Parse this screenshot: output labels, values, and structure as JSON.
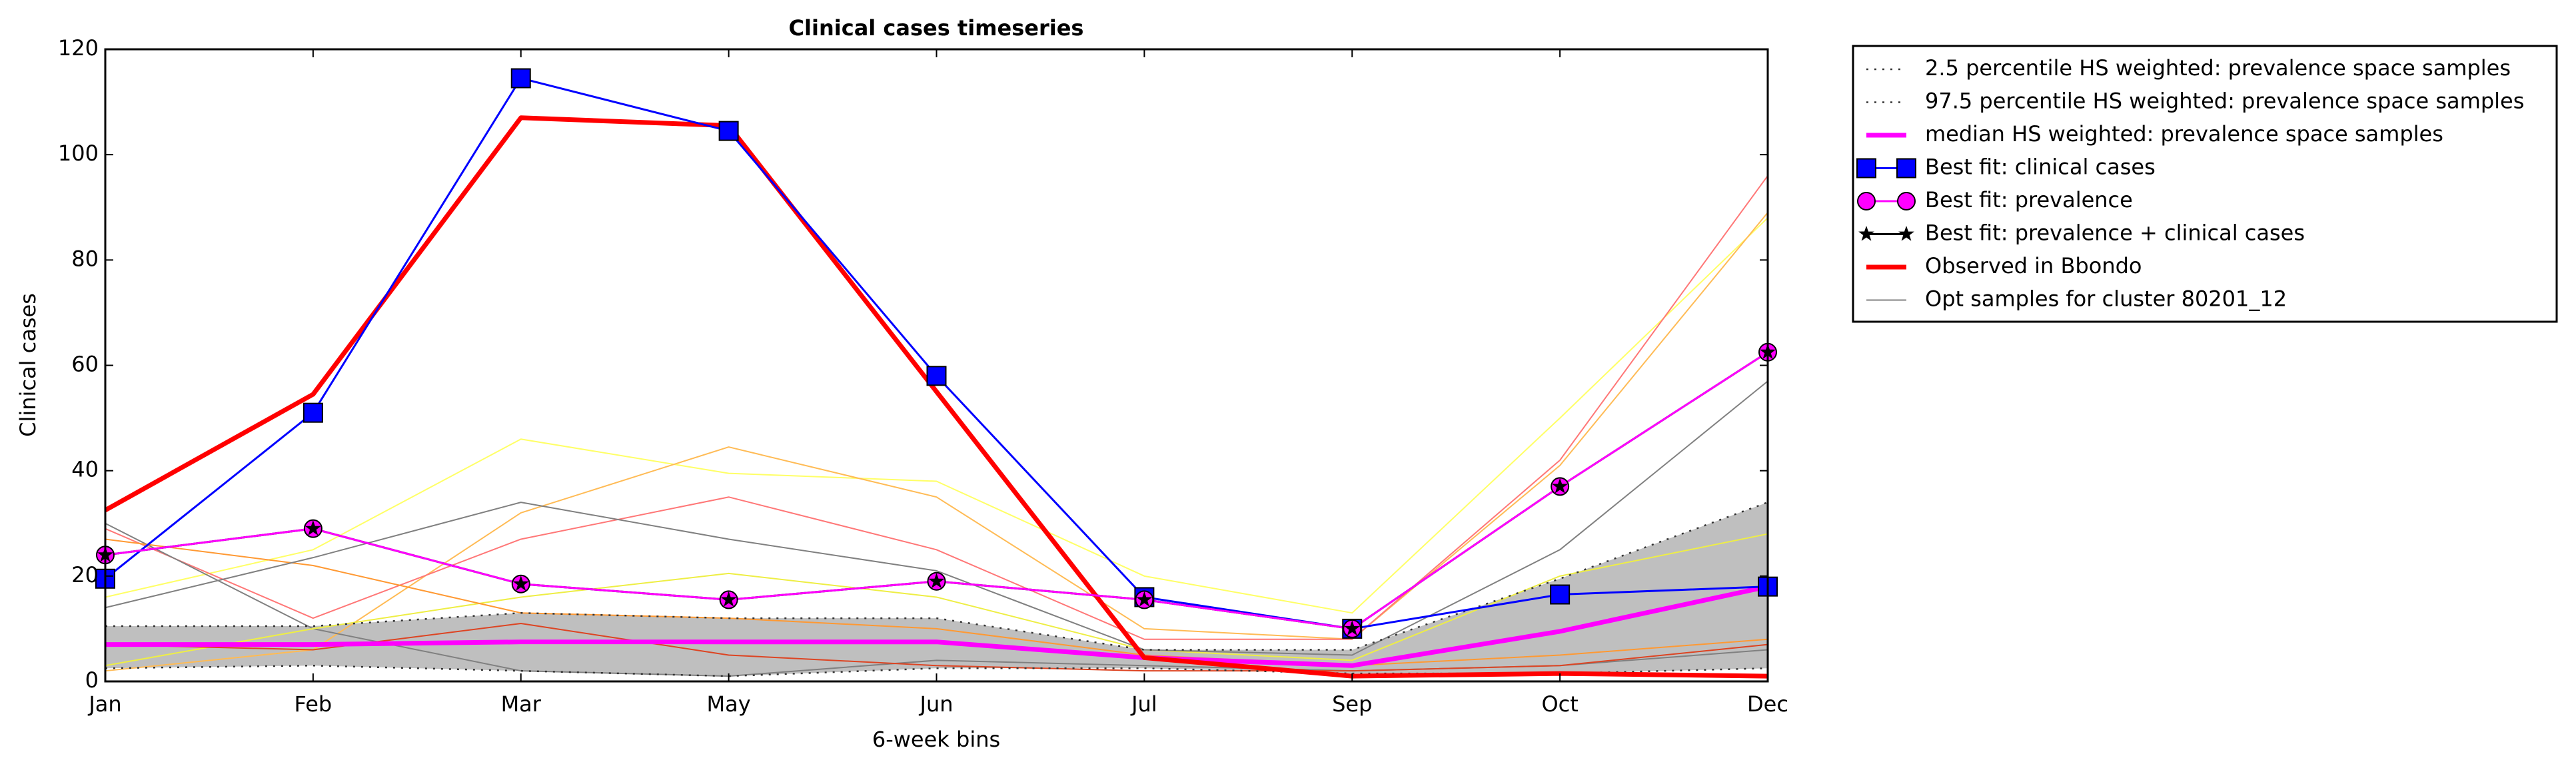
{
  "chart_data": {
    "type": "line",
    "title": "Clinical cases timeseries",
    "x_label": "6-week bins",
    "y_label": "Clinical cases",
    "categories": [
      "Jan",
      "Feb",
      "Mar",
      "May",
      "Jun",
      "Jul",
      "Sep",
      "Oct",
      "Dec"
    ],
    "ylim": [
      0,
      120
    ],
    "yticks": [
      0,
      20,
      40,
      60,
      80,
      100,
      120
    ],
    "legend": "outside-upper-right",
    "band_fill": "#bfbfbf",
    "series": [
      {
        "name": "2.5 percentile HS weighted: prevalence space samples",
        "color": "#333333",
        "style": "dotted",
        "values": [
          2.5,
          3,
          2,
          1,
          2.5,
          2.5,
          1.5,
          1.5,
          2.5
        ]
      },
      {
        "name": "97.5 percentile HS weighted: prevalence space samples",
        "color": "#333333",
        "style": "dotted",
        "values": [
          10.5,
          10.5,
          13,
          12,
          12,
          6,
          6,
          19.5,
          34
        ]
      },
      {
        "name": "median HS weighted: prevalence space samples",
        "color": "#ff00ff",
        "style": "thick",
        "values": [
          7,
          7,
          7.5,
          7.5,
          7.5,
          4.5,
          3,
          9.5,
          18
        ]
      },
      {
        "name": "Best fit: clinical cases",
        "color": "#0000ff",
        "marker": "square",
        "values": [
          19.5,
          51,
          114.5,
          104.5,
          58,
          16,
          10,
          16.5,
          18
        ]
      },
      {
        "name": "Best fit: prevalence",
        "color": "#ff00ff",
        "marker": "circle",
        "values": [
          24,
          29,
          18.5,
          15.5,
          19,
          15.5,
          10,
          37,
          62.5
        ]
      },
      {
        "name": "Best fit: prevalence + clinical cases",
        "color": "#000000",
        "marker": "star",
        "values": [
          24,
          29,
          18.5,
          15.5,
          19,
          15.5,
          10,
          37,
          62.5
        ]
      },
      {
        "name": "Observed in Bbondo",
        "color": "#ff0000",
        "style": "thick",
        "values": [
          32.5,
          54.5,
          107,
          105.5,
          55,
          4.5,
          1,
          1.5,
          1
        ]
      },
      {
        "name": "Opt samples for cluster 80201_12",
        "color": "#808080",
        "style": "thin",
        "values": [
          14,
          23.5,
          34,
          27,
          21,
          6,
          5,
          25,
          57
        ],
        "samples": [
          {
            "color": "#ffff66",
            "values": [
              16,
              25,
              46,
              39.5,
              38,
              20,
              13,
              50,
              88
            ]
          },
          {
            "color": "#ffbb55",
            "values": [
              2,
              6,
              32,
              44.5,
              35,
              10,
              8,
              41,
              89
            ]
          },
          {
            "color": "#ff7777",
            "values": [
              29,
              12,
              27,
              35,
              25,
              8,
              8,
              42,
              96
            ]
          },
          {
            "color": "#808080",
            "values": [
              30,
              10,
              2,
              1,
              4,
              3,
              2,
              3,
              6
            ]
          },
          {
            "color": "#eeee44",
            "values": [
              3,
              10,
              16,
              20.5,
              16,
              6,
              4,
              20,
              28
            ]
          },
          {
            "color": "#ff9933",
            "values": [
              27,
              22,
              13,
              12,
              10,
              5,
              3,
              5,
              8
            ]
          },
          {
            "color": "#dd4422",
            "values": [
              7,
              6,
              11,
              5,
              3,
              2,
              2,
              3,
              7
            ]
          }
        ]
      }
    ]
  }
}
